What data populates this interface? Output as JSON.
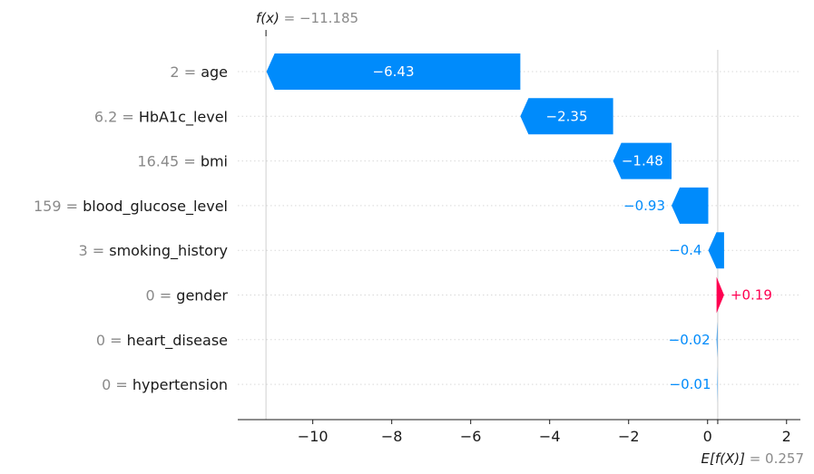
{
  "chart_data": {
    "type": "waterfall",
    "fx": {
      "label_prefix": "f(x)",
      "value_text": "−11.185",
      "value": -11.185
    },
    "expected": {
      "label_prefix": "E[f(X)]",
      "value_text": "0.257",
      "value": 0.257
    },
    "xlim": [
      -11.9,
      2.35
    ],
    "xticks": [
      -10,
      -8,
      -6,
      -4,
      -2,
      0,
      2
    ],
    "xtick_labels": [
      "−10",
      "−8",
      "−6",
      "−4",
      "−2",
      "0",
      "2"
    ],
    "features": [
      {
        "value": "2",
        "name": "age",
        "contribution": -6.43,
        "label": "−6.43",
        "label_inside": true
      },
      {
        "value": "6.2",
        "name": "HbA1c_level",
        "contribution": -2.35,
        "label": "−2.35",
        "label_inside": true
      },
      {
        "value": "16.45",
        "name": "bmi",
        "contribution": -1.48,
        "label": "−1.48",
        "label_inside": true
      },
      {
        "value": "159",
        "name": "blood_glucose_level",
        "contribution": -0.93,
        "label": "−0.93",
        "label_inside": false
      },
      {
        "value": "3",
        "name": "smoking_history",
        "contribution": -0.4,
        "label": "−0.4",
        "label_inside": false
      },
      {
        "value": "0",
        "name": "gender",
        "contribution": 0.19,
        "label": "+0.19",
        "label_inside": false
      },
      {
        "value": "0",
        "name": "heart_disease",
        "contribution": -0.02,
        "label": "−0.02",
        "label_inside": false
      },
      {
        "value": "0",
        "name": "hypertension",
        "contribution": -0.01,
        "label": "−0.01",
        "label_inside": false
      }
    ],
    "colors": {
      "negative": "#008bfb",
      "positive": "#ff0051",
      "grid": "#d9d9d9",
      "axis": "#1a1a1a",
      "muted": "#8a8a8a"
    }
  }
}
